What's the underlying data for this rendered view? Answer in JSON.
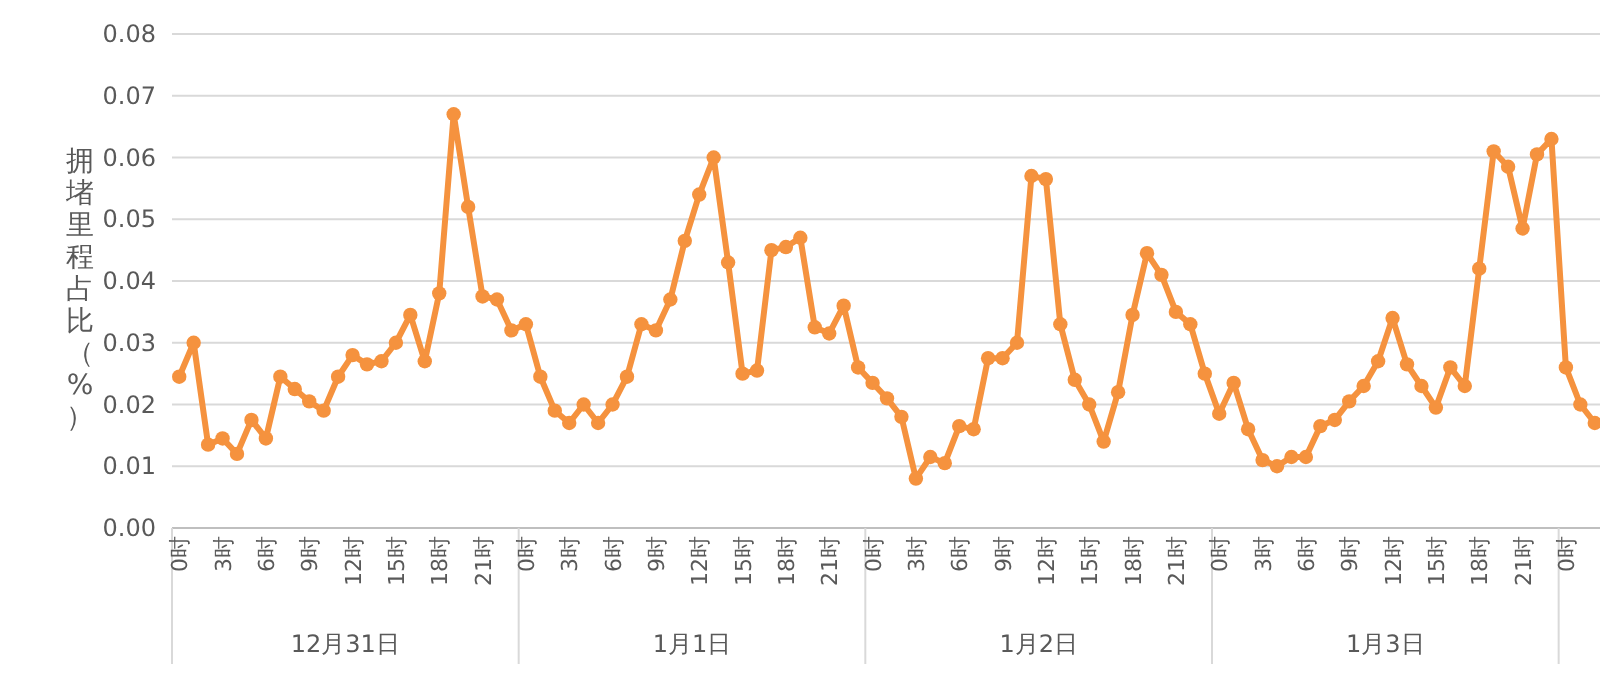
{
  "chart_data": {
    "type": "line",
    "ylabel": "拥堵里程占比（%）",
    "categories": [
      "0时",
      null,
      null,
      "3时",
      null,
      null,
      "6时",
      null,
      null,
      "9时",
      null,
      null,
      "12时",
      null,
      null,
      "15时",
      null,
      null,
      "18时",
      null,
      null,
      "21时",
      null,
      null,
      "0时",
      null,
      null,
      "3时",
      null,
      null,
      "6时",
      null,
      null,
      "9时",
      null,
      null,
      "12时",
      null,
      null,
      "15时",
      null,
      null,
      "18时",
      null,
      null,
      "21时",
      null,
      null,
      "0时",
      null,
      null,
      "3时",
      null,
      null,
      "6时",
      null,
      null,
      "9时",
      null,
      null,
      "12时",
      null,
      null,
      "15时",
      null,
      null,
      "18时",
      null,
      null,
      "21时",
      null,
      null,
      "0时",
      null,
      null,
      "3时",
      null,
      null,
      "6时",
      null,
      null,
      "9时",
      null,
      null,
      "12时",
      null,
      null,
      "15时",
      null,
      null,
      "18时",
      null,
      null,
      "21时",
      null,
      null,
      "0时",
      null,
      null
    ],
    "series": [
      {
        "color": "#f5923e",
        "values": [
          0.0245,
          0.03,
          0.0135,
          0.0145,
          0.012,
          0.0175,
          0.0145,
          0.0245,
          0.0225,
          0.0205,
          0.019,
          0.0245,
          0.028,
          0.0265,
          0.027,
          0.03,
          0.0345,
          0.027,
          0.038,
          0.067,
          0.052,
          0.0375,
          0.037,
          0.032,
          0.033,
          0.0245,
          0.019,
          0.017,
          0.02,
          0.017,
          0.02,
          0.0245,
          0.033,
          0.032,
          0.037,
          0.0465,
          0.054,
          0.06,
          0.043,
          0.025,
          0.0255,
          0.045,
          0.0455,
          0.047,
          0.0325,
          0.0315,
          0.036,
          0.026,
          0.0235,
          0.021,
          0.018,
          0.008,
          0.0115,
          0.0105,
          0.0165,
          0.016,
          0.0275,
          0.0275,
          0.03,
          0.057,
          0.0565,
          0.033,
          0.024,
          0.02,
          0.014,
          0.022,
          0.0345,
          0.0445,
          0.041,
          0.035,
          0.033,
          0.025,
          0.0185,
          0.0235,
          0.016,
          0.011,
          0.01,
          0.0115,
          0.0115,
          0.0165,
          0.0175,
          0.0205,
          0.023,
          0.027,
          0.034,
          0.0265,
          0.023,
          0.0195,
          0.026,
          0.023,
          0.042,
          0.061,
          0.0585,
          0.0485,
          0.0605,
          0.063,
          0.026,
          0.02,
          0.017
        ]
      }
    ],
    "ylim": [
      0,
      0.08
    ],
    "yticks": [
      {
        "value": 0,
        "label": "0.00"
      },
      {
        "value": 0.01,
        "label": "0.01"
      },
      {
        "value": 0.02,
        "label": "0.02"
      },
      {
        "value": 0.03,
        "label": "0.03"
      },
      {
        "value": 0.04,
        "label": "0.04"
      },
      {
        "value": 0.05,
        "label": "0.05"
      },
      {
        "value": 0.06,
        "label": "0.06"
      },
      {
        "value": 0.07,
        "label": "0.07"
      },
      {
        "value": 0.08,
        "label": "0.08"
      }
    ],
    "annotations": [
      "12月31日",
      "1月1日",
      "1月2日",
      "1月3日"
    ],
    "grid": "y",
    "marker": "circle",
    "line_style": "solid"
  }
}
